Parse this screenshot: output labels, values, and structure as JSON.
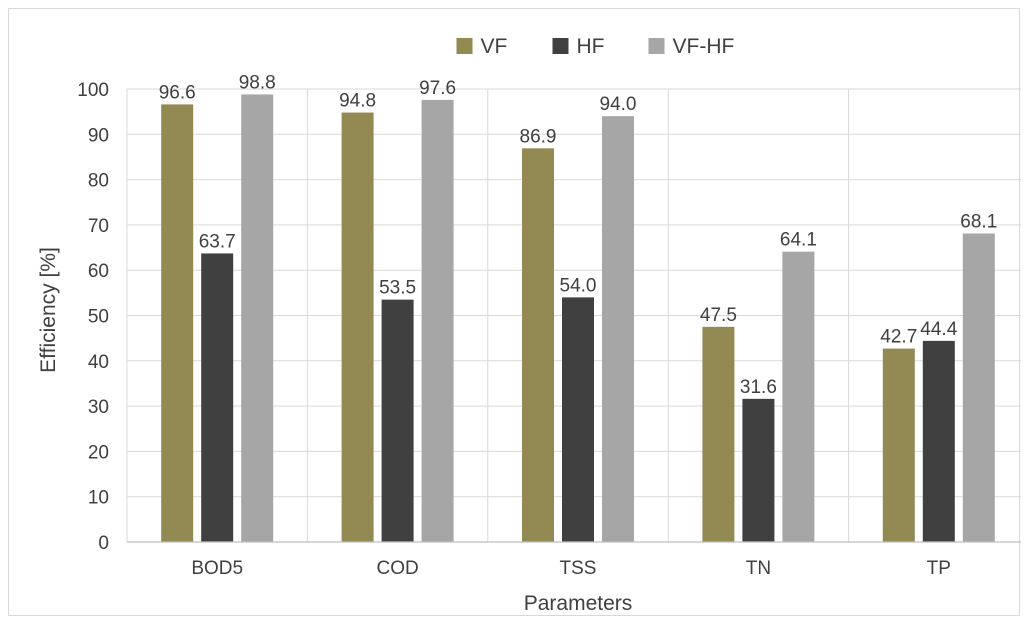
{
  "chart_data": {
    "type": "bar",
    "categories": [
      "BOD5",
      "COD",
      "TSS",
      "TN",
      "TP"
    ],
    "series": [
      {
        "name": "VF",
        "values": [
          96.6,
          94.8,
          86.9,
          47.5,
          42.7
        ],
        "labels": [
          "96.6",
          "94.8",
          "86.9",
          "47.5",
          "42.7"
        ],
        "color": "#938953"
      },
      {
        "name": "HF",
        "values": [
          63.7,
          53.5,
          54.0,
          31.6,
          44.4
        ],
        "labels": [
          "63.7",
          "53.5",
          "54.0",
          "31.6",
          "44.4"
        ],
        "color": "#404040"
      },
      {
        "name": "VF-HF",
        "values": [
          98.8,
          97.6,
          94.0,
          64.1,
          68.1
        ],
        "labels": [
          "98.8",
          "97.6",
          "94.0",
          "64.1",
          "68.1"
        ],
        "color": "#a6a6a6"
      }
    ],
    "xlabel": "Parameters",
    "ylabel": "Efficiency [%]",
    "ylim": [
      0,
      100
    ],
    "yticks": [
      "0",
      "10",
      "20",
      "30",
      "40",
      "50",
      "60",
      "70",
      "80",
      "90",
      "100"
    ],
    "grid": true,
    "legend": "top-center"
  }
}
